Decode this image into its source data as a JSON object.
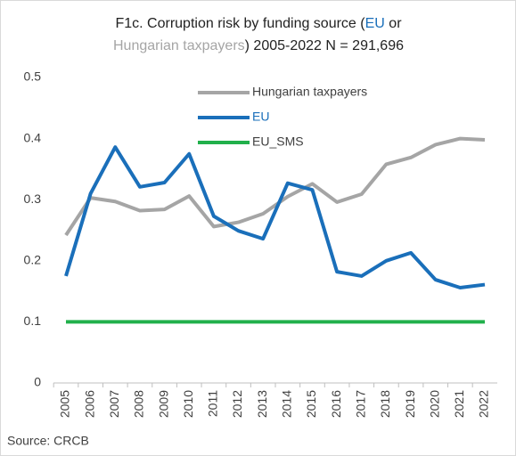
{
  "chart_data": {
    "type": "line",
    "title": [
      "F1c. Corruption risk by funding source (",
      "EU",
      " or ",
      "Hungarian taxpayers",
      ") 2005-2022 N = 291,696"
    ],
    "categories": [
      "2005",
      "2006",
      "2007",
      "2008",
      "2009",
      "2010",
      "2011",
      "2012",
      "2013",
      "2014",
      "2015",
      "2016",
      "2017",
      "2018",
      "2019",
      "2020",
      "2021",
      "2022"
    ],
    "series": [
      {
        "name": "Hungarian taxpayers",
        "color": "#a5a5a5",
        "values": [
          0.242,
          0.303,
          0.297,
          0.282,
          0.284,
          0.306,
          0.256,
          0.263,
          0.277,
          0.305,
          0.326,
          0.296,
          0.309,
          0.358,
          0.369,
          0.39,
          0.4,
          0.398
        ]
      },
      {
        "name": "EU",
        "color": "#1a6fba",
        "values": [
          0.175,
          0.31,
          0.386,
          0.321,
          0.328,
          0.375,
          0.273,
          0.249,
          0.236,
          0.327,
          0.316,
          0.182,
          0.175,
          0.2,
          0.213,
          0.169,
          0.156,
          0.161
        ]
      },
      {
        "name": "EU_SMS",
        "color": "#21b04b",
        "values": [
          0.1,
          0.1,
          0.1,
          0.1,
          0.1,
          0.1,
          0.1,
          0.1,
          0.1,
          0.1,
          0.1,
          0.1,
          0.1,
          0.1,
          0.1,
          0.1,
          0.1,
          0.1
        ]
      }
    ],
    "ylim": [
      0,
      0.5
    ],
    "yticks": [
      0,
      0.1,
      0.2,
      0.3,
      0.4,
      0.5
    ],
    "source": "Source: CRCB"
  }
}
